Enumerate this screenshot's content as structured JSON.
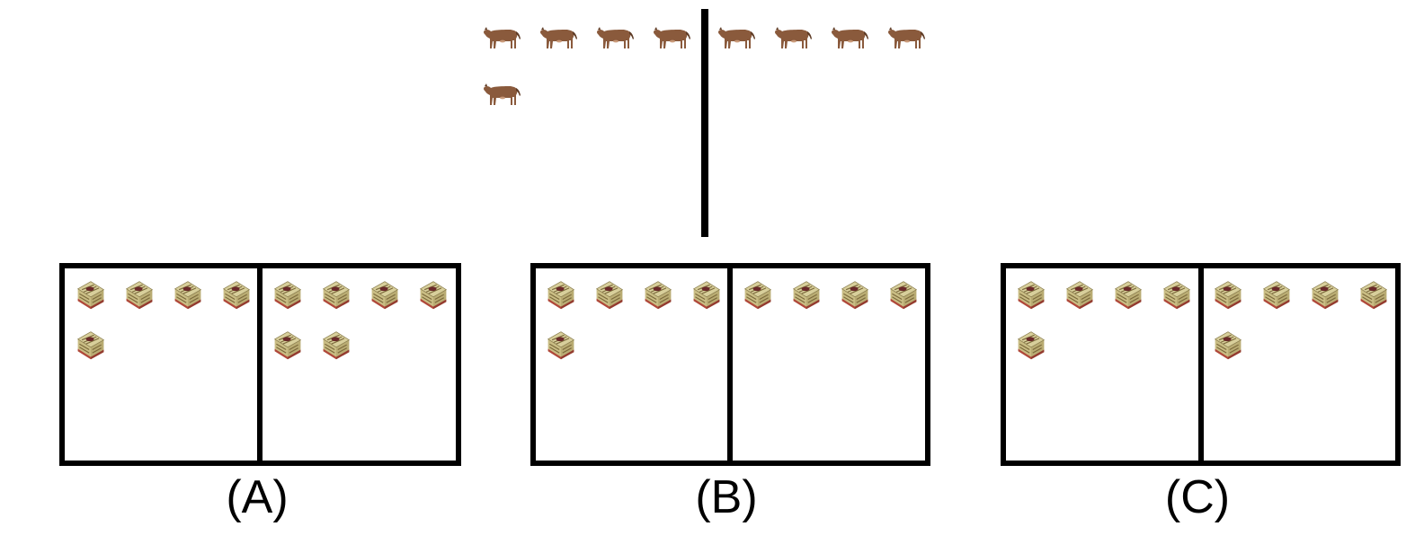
{
  "puzzle": {
    "reference": {
      "object": "cow-icon",
      "left_count": 5,
      "right_count": 4
    },
    "options": [
      {
        "label": "(A)",
        "object": "box-icon",
        "left_count": 5,
        "right_count": 6
      },
      {
        "label": "(B)",
        "object": "box-icon",
        "left_count": 5,
        "right_count": 4
      },
      {
        "label": "(C)",
        "object": "box-icon",
        "left_count": 5,
        "right_count": 5
      }
    ]
  },
  "colors": {
    "line": "#000000",
    "cow_body": "#8a5a3c",
    "cow_dark": "#5e3b25",
    "box_top": "#d8cf9b",
    "box_side": "#b9ac73",
    "box_stripe": "#7c6a3c",
    "box_base": "#b0473a"
  }
}
